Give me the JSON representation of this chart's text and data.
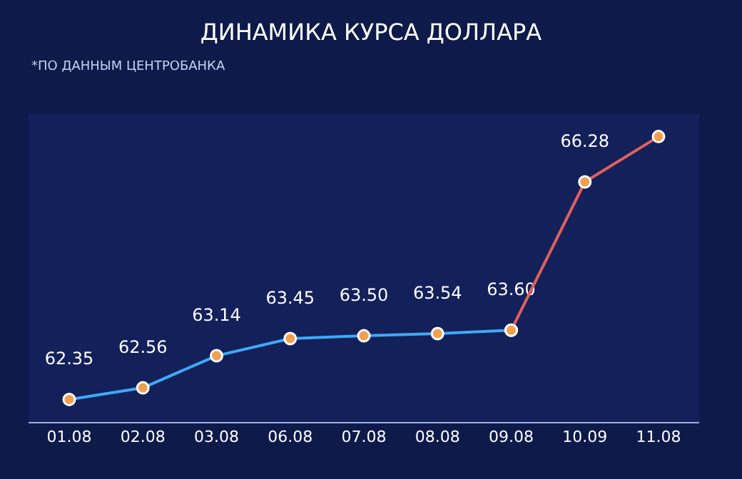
{
  "chart_data": {
    "type": "line",
    "title": "ДИНАМИКА КУРСА ДОЛЛАРА",
    "subtitle": "*ПО ДАННЫМ ЦЕНТРОБАНКА",
    "categories": [
      "01.08",
      "02.08",
      "03.08",
      "06.08",
      "07.08",
      "08.08",
      "09.08",
      "10.09",
      "11.08"
    ],
    "series": [
      {
        "color": "#3fa9f5",
        "values": [
          62.35,
          62.56,
          63.14,
          63.45,
          63.5,
          63.54,
          63.6,
          null,
          null
        ],
        "value_labels": [
          "62.35",
          "62.56",
          "63.14",
          "63.45",
          "63.50",
          "63.54",
          "63.60",
          null,
          null
        ]
      },
      {
        "color": "#e0605a",
        "values": [
          null,
          null,
          null,
          null,
          null,
          null,
          63.6,
          66.28,
          67.1
        ],
        "value_labels": [
          null,
          null,
          null,
          null,
          null,
          null,
          null,
          "66.28",
          null
        ]
      }
    ],
    "marker": "circle",
    "line_style": "solid",
    "grid": false
  }
}
